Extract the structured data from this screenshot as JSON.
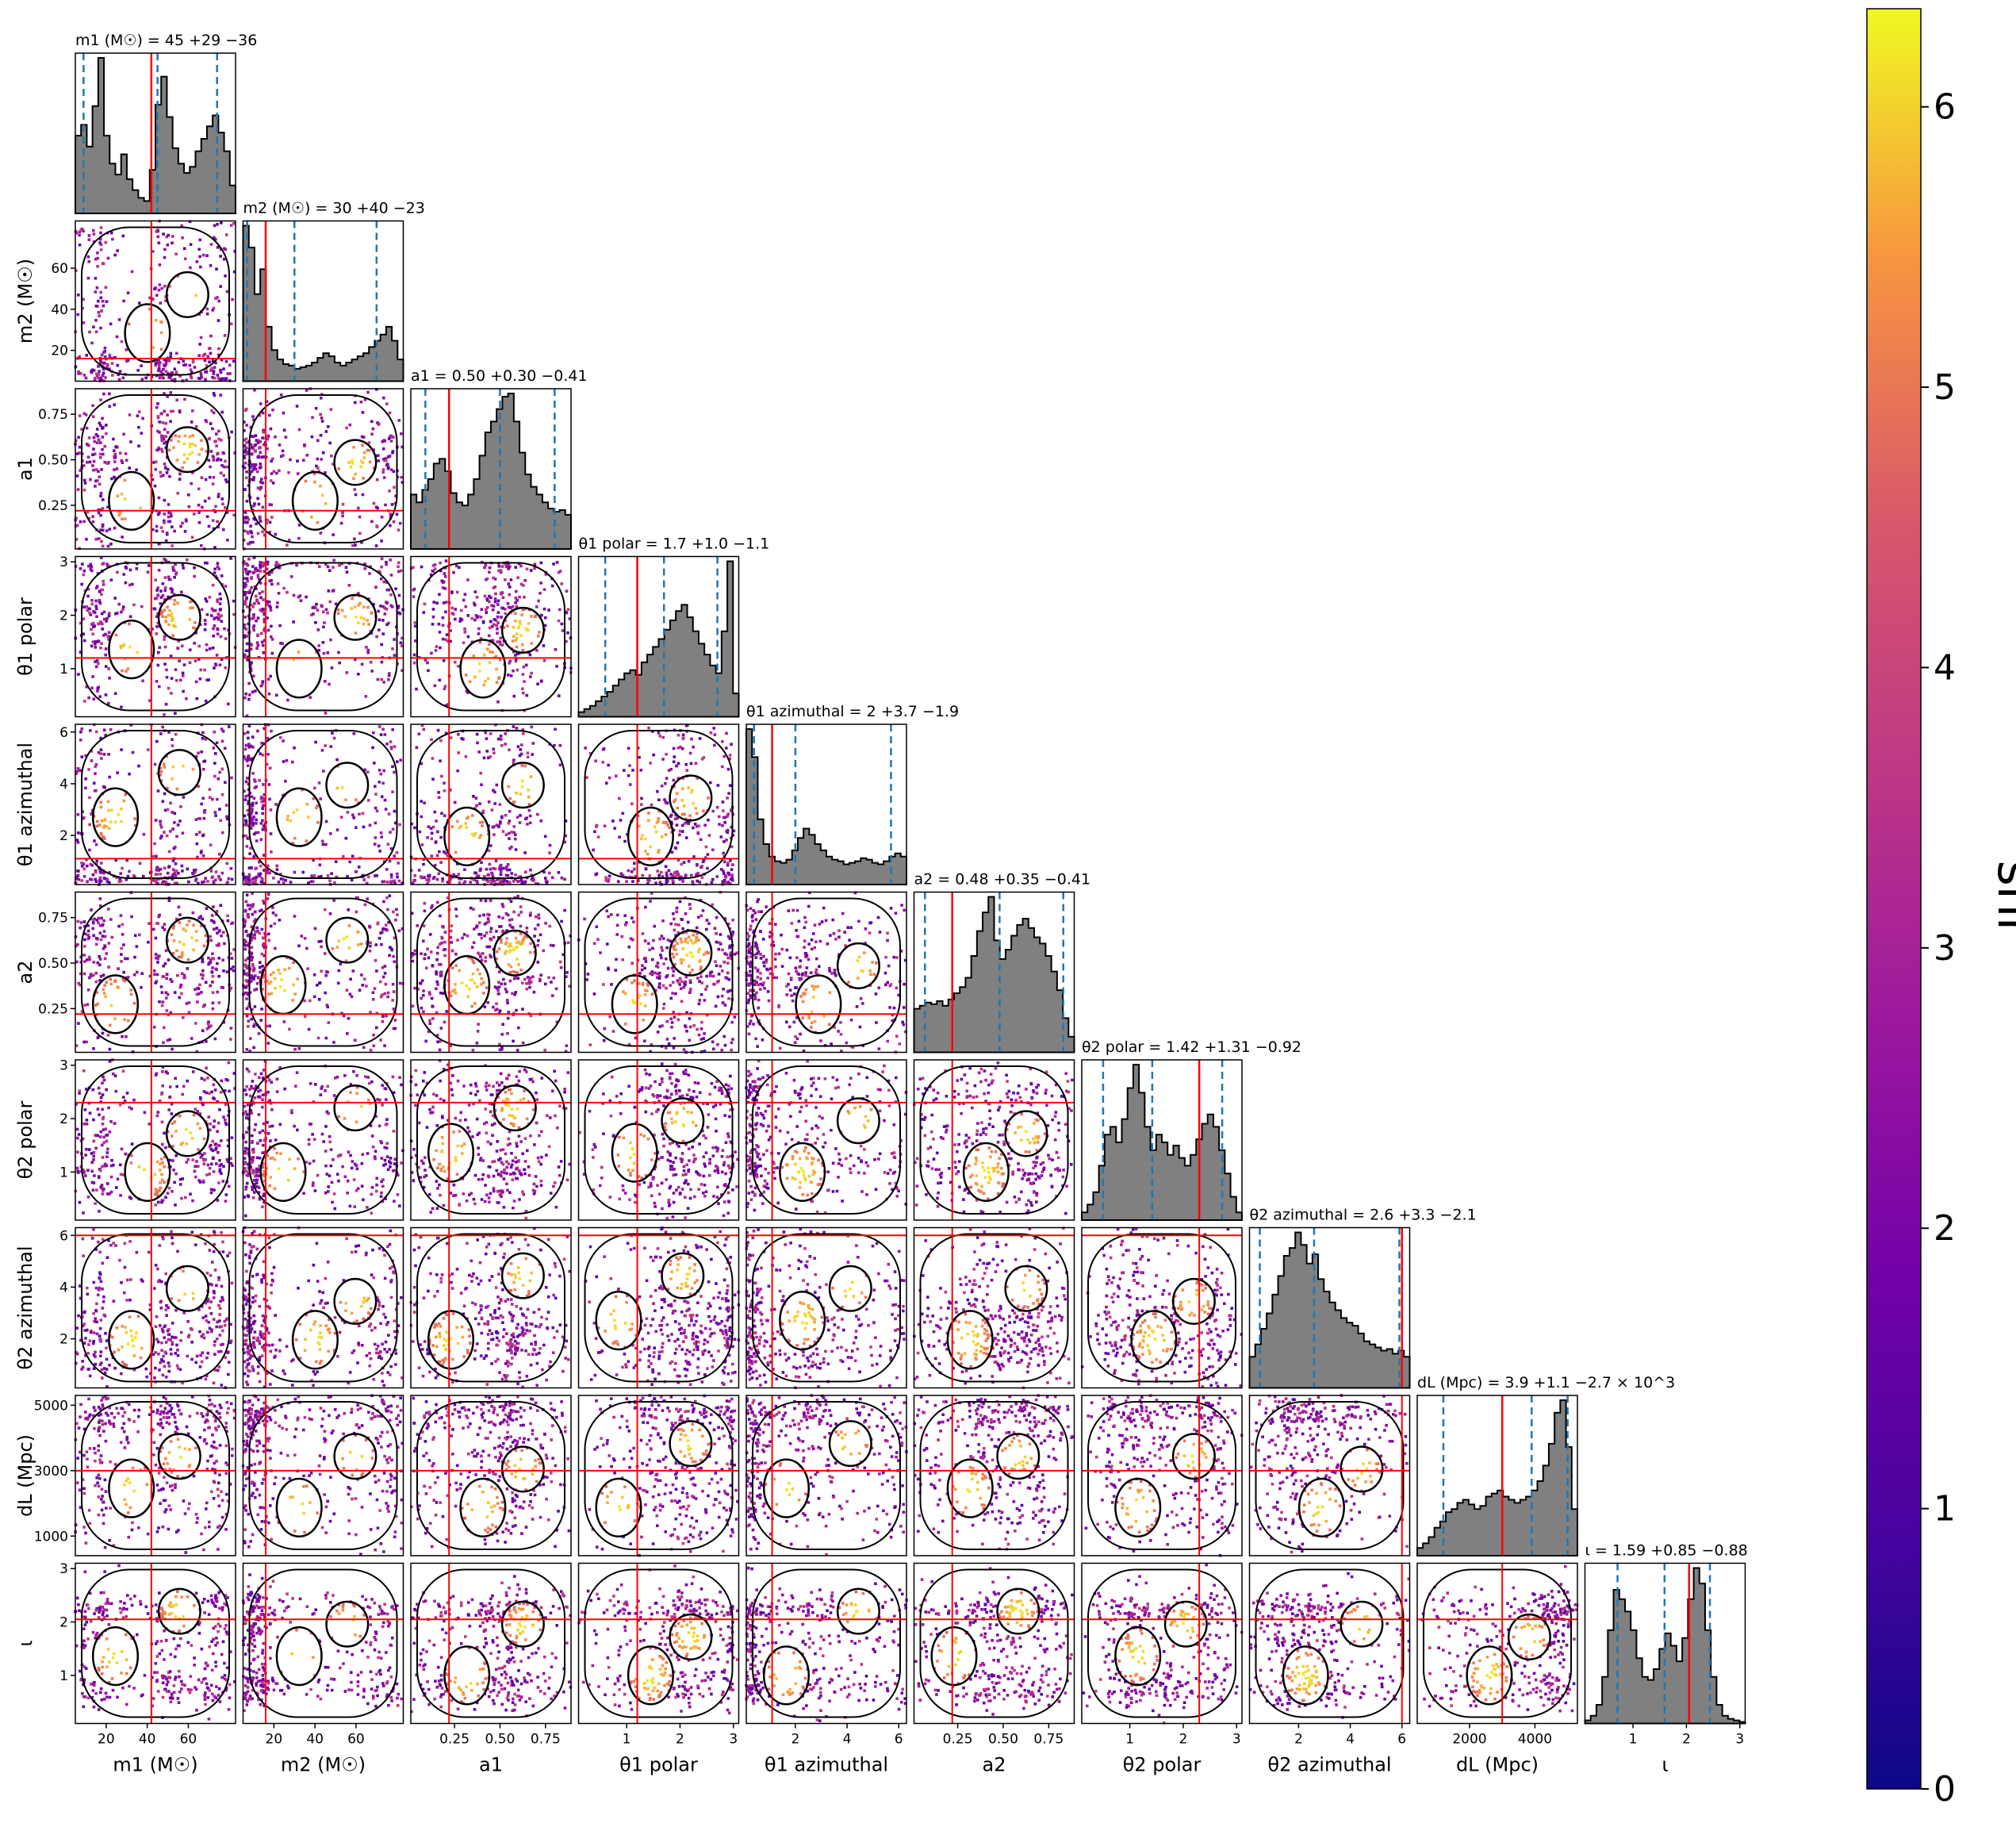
{
  "chart_data": {
    "type": "corner",
    "colorbar": {
      "label": "snr",
      "range": [
        0,
        6.35
      ],
      "ticks": [
        "0",
        "1",
        "2",
        "3",
        "4",
        "5",
        "6"
      ],
      "colormap": "plasma"
    },
    "colors": {
      "histogram_fill": "#808080",
      "quantile_lines": "#1f77b4",
      "truth_lines": "#ff0000",
      "contours": "#000000"
    },
    "parameters": [
      {
        "key": "m1",
        "axis_label": "m1 (M☉)",
        "title": "m1 (M☉) = 45 +29 −36",
        "range": [
          5,
          83
        ],
        "ticks": [
          20,
          40,
          60
        ],
        "tick_labels": [
          "20",
          "40",
          "60"
        ],
        "truth": 42,
        "quantiles": [
          9,
          45,
          74
        ],
        "histogram": [
          0.5,
          0.57,
          0.43,
          0.69,
          1.0,
          0.5,
          0.32,
          0.25,
          0.38,
          0.22,
          0.15,
          0.1,
          0.08,
          0.28,
          0.7,
          0.88,
          0.62,
          0.42,
          0.32,
          0.26,
          0.3,
          0.4,
          0.48,
          0.56,
          0.63,
          0.52,
          0.4,
          0.18
        ]
      },
      {
        "key": "m2",
        "axis_label": "m2 (M☉)",
        "title": "m2 (M☉) = 30 +40 −23",
        "range": [
          5,
          83
        ],
        "ticks": [
          20,
          40,
          60
        ],
        "tick_labels": [
          "20",
          "40",
          "60"
        ],
        "truth": 16,
        "quantiles": [
          7,
          30,
          70
        ],
        "histogram": [
          1.0,
          0.86,
          0.56,
          0.72,
          0.35,
          0.2,
          0.14,
          0.11,
          0.1,
          0.08,
          0.09,
          0.1,
          0.12,
          0.15,
          0.18,
          0.16,
          0.12,
          0.1,
          0.12,
          0.14,
          0.16,
          0.18,
          0.22,
          0.26,
          0.3,
          0.35,
          0.26,
          0.14
        ]
      },
      {
        "key": "a1",
        "axis_label": "a1",
        "title": "a1 = 0.50 +0.30 −0.41",
        "range": [
          0.01,
          0.89
        ],
        "ticks": [
          0.25,
          0.5,
          0.75
        ],
        "tick_labels": [
          "0.25",
          "0.50",
          "0.75"
        ],
        "truth": 0.22,
        "quantiles": [
          0.09,
          0.5,
          0.8
        ],
        "histogram": [
          0.35,
          0.3,
          0.38,
          0.45,
          0.55,
          0.58,
          0.5,
          0.36,
          0.3,
          0.28,
          0.35,
          0.45,
          0.6,
          0.75,
          0.82,
          0.9,
          0.98,
          1.0,
          0.82,
          0.62,
          0.48,
          0.4,
          0.35,
          0.3,
          0.26,
          0.24,
          0.25,
          0.22
        ]
      },
      {
        "key": "theta1_polar",
        "axis_label": "θ1 polar",
        "title": "θ1 polar = 1.7 +1.0 −1.1",
        "range": [
          0.1,
          3.1
        ],
        "ticks": [
          1,
          2,
          3
        ],
        "tick_labels": [
          "1",
          "2",
          "3"
        ],
        "truth": 1.2,
        "quantiles": [
          0.6,
          1.7,
          2.7
        ],
        "histogram": [
          0.03,
          0.05,
          0.07,
          0.1,
          0.13,
          0.16,
          0.2,
          0.24,
          0.28,
          0.3,
          0.27,
          0.35,
          0.4,
          0.45,
          0.5,
          0.56,
          0.62,
          0.68,
          0.72,
          0.64,
          0.55,
          0.47,
          0.4,
          0.33,
          0.28,
          0.55,
          1.0,
          0.15
        ]
      },
      {
        "key": "theta1_azimuthal",
        "axis_label": "θ1 azimuthal",
        "title": "θ1 azimuthal = 2 +3.7 −1.9",
        "range": [
          0.1,
          6.3
        ],
        "ticks": [
          2,
          4,
          6
        ],
        "tick_labels": [
          "2",
          "4",
          "6"
        ],
        "truth": 1.1,
        "quantiles": [
          0.4,
          2.0,
          5.7
        ],
        "histogram": [
          1.0,
          0.82,
          0.42,
          0.26,
          0.18,
          0.15,
          0.14,
          0.16,
          0.22,
          0.3,
          0.36,
          0.32,
          0.26,
          0.22,
          0.18,
          0.16,
          0.15,
          0.13,
          0.14,
          0.15,
          0.17,
          0.16,
          0.14,
          0.13,
          0.15,
          0.18,
          0.2,
          0.18
        ]
      },
      {
        "key": "a2",
        "axis_label": "a2",
        "title": "a2 = 0.48 +0.35 −0.41",
        "range": [
          0.01,
          0.89
        ],
        "ticks": [
          0.25,
          0.5,
          0.75
        ],
        "tick_labels": [
          "0.25",
          "0.50",
          "0.75"
        ],
        "truth": 0.22,
        "quantiles": [
          0.07,
          0.48,
          0.83
        ],
        "histogram": [
          0.28,
          0.3,
          0.32,
          0.31,
          0.33,
          0.3,
          0.34,
          0.38,
          0.42,
          0.48,
          0.62,
          0.78,
          0.9,
          1.0,
          0.72,
          0.6,
          0.66,
          0.75,
          0.82,
          0.86,
          0.8,
          0.74,
          0.7,
          0.62,
          0.52,
          0.4,
          0.22,
          0.1
        ]
      },
      {
        "key": "theta2_polar",
        "axis_label": "θ2 polar",
        "title": "θ2 polar = 1.42 +1.31 −0.92",
        "range": [
          0.1,
          3.1
        ],
        "ticks": [
          1,
          2,
          3
        ],
        "tick_labels": [
          "1",
          "2",
          "3"
        ],
        "truth": 2.3,
        "quantiles": [
          0.5,
          1.42,
          2.73
        ],
        "histogram": [
          0.05,
          0.1,
          0.18,
          0.35,
          0.55,
          0.6,
          0.5,
          0.65,
          0.85,
          1.0,
          0.82,
          0.6,
          0.45,
          0.55,
          0.5,
          0.42,
          0.48,
          0.4,
          0.35,
          0.42,
          0.52,
          0.62,
          0.68,
          0.6,
          0.45,
          0.3,
          0.15,
          0.05
        ]
      },
      {
        "key": "theta2_azimuthal",
        "axis_label": "θ2 azimuthal",
        "title": "θ2 azimuthal = 2.6 +3.3 −2.1",
        "range": [
          0.1,
          6.3
        ],
        "ticks": [
          2,
          4,
          6
        ],
        "tick_labels": [
          "2",
          "4",
          "6"
        ],
        "truth": 6.0,
        "quantiles": [
          0.5,
          2.6,
          5.9
        ],
        "histogram": [
          0.2,
          0.28,
          0.38,
          0.48,
          0.6,
          0.72,
          0.85,
          0.9,
          1.0,
          0.92,
          0.8,
          0.86,
          0.7,
          0.62,
          0.55,
          0.5,
          0.45,
          0.42,
          0.4,
          0.35,
          0.3,
          0.28,
          0.26,
          0.24,
          0.25,
          0.22,
          0.24,
          0.2
        ]
      },
      {
        "key": "dL",
        "axis_label": "dL (Mpc)",
        "title": "dL (Mpc) = 3.9 +1.1 −2.7 × 10^3",
        "range": [
          400,
          5300
        ],
        "ticks": [
          1000,
          3000,
          5000
        ],
        "tick_labels": [
          "1000",
          "3000",
          "5000"
        ],
        "x_ticks": [
          2000,
          4000
        ],
        "x_tick_labels": [
          "2000",
          "4000"
        ],
        "truth": 3000,
        "quantiles": [
          1200,
          3900,
          5000
        ],
        "histogram": [
          0.05,
          0.08,
          0.12,
          0.18,
          0.22,
          0.28,
          0.3,
          0.34,
          0.36,
          0.33,
          0.3,
          0.32,
          0.38,
          0.4,
          0.42,
          0.38,
          0.36,
          0.34,
          0.36,
          0.38,
          0.42,
          0.48,
          0.58,
          0.72,
          0.92,
          1.0,
          0.7,
          0.3
        ]
      },
      {
        "key": "iota",
        "axis_label": "ι",
        "title": "ι = 1.59 +0.85 −0.88",
        "range": [
          0.1,
          3.1
        ],
        "ticks": [
          1,
          2,
          3
        ],
        "tick_labels": [
          "1",
          "2",
          "3"
        ],
        "truth": 2.05,
        "quantiles": [
          0.71,
          1.59,
          2.44
        ],
        "histogram": [
          0.02,
          0.05,
          0.12,
          0.3,
          0.6,
          0.86,
          0.8,
          0.72,
          0.6,
          0.42,
          0.3,
          0.28,
          0.35,
          0.48,
          0.58,
          0.5,
          0.4,
          0.55,
          0.8,
          1.0,
          0.9,
          0.6,
          0.3,
          0.12,
          0.05,
          0.03,
          0.02,
          0.01
        ]
      }
    ]
  }
}
